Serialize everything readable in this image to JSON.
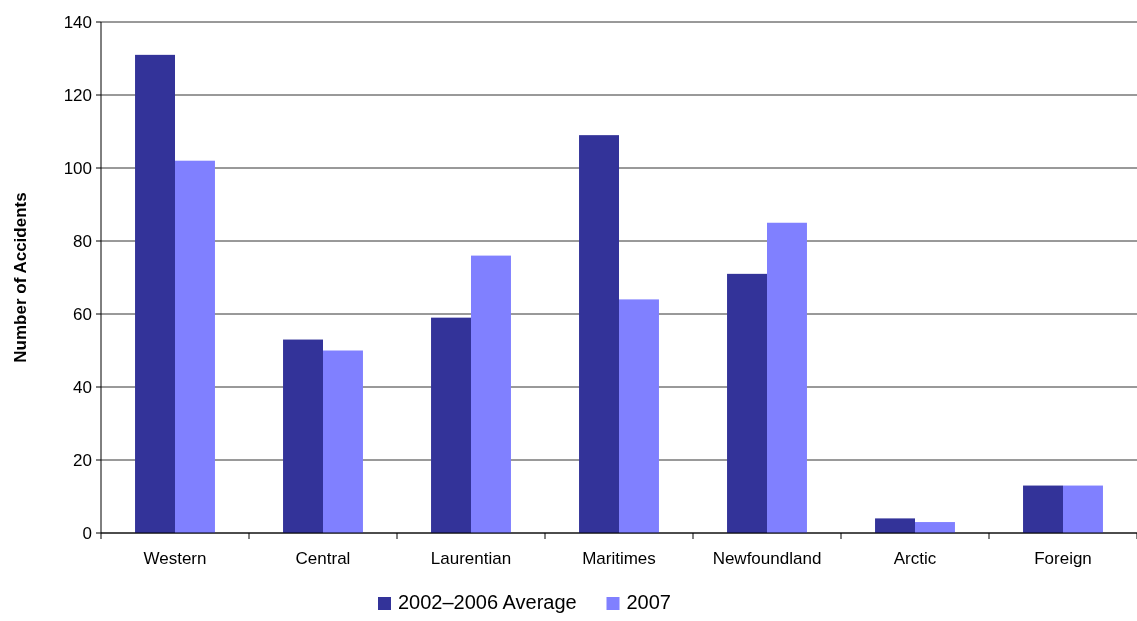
{
  "chart_data": {
    "type": "bar",
    "ylabel": "Number of Accidents",
    "categories": [
      "Western",
      "Central",
      "Laurentian",
      "Maritimes",
      "Newfoundland",
      "Arctic",
      "Foreign"
    ],
    "series": [
      {
        "name": "2002–2006 Average",
        "color": "#333399",
        "values": [
          131,
          53,
          59,
          109,
          71,
          4,
          13
        ]
      },
      {
        "name": "2007",
        "color": "#8080ff",
        "values": [
          102,
          50,
          76,
          64,
          85,
          3,
          13
        ]
      }
    ],
    "ylim": [
      0,
      140
    ],
    "yticks": [
      0,
      20,
      40,
      60,
      80,
      100,
      120,
      140
    ],
    "grid": "y",
    "legend": "bottom"
  }
}
